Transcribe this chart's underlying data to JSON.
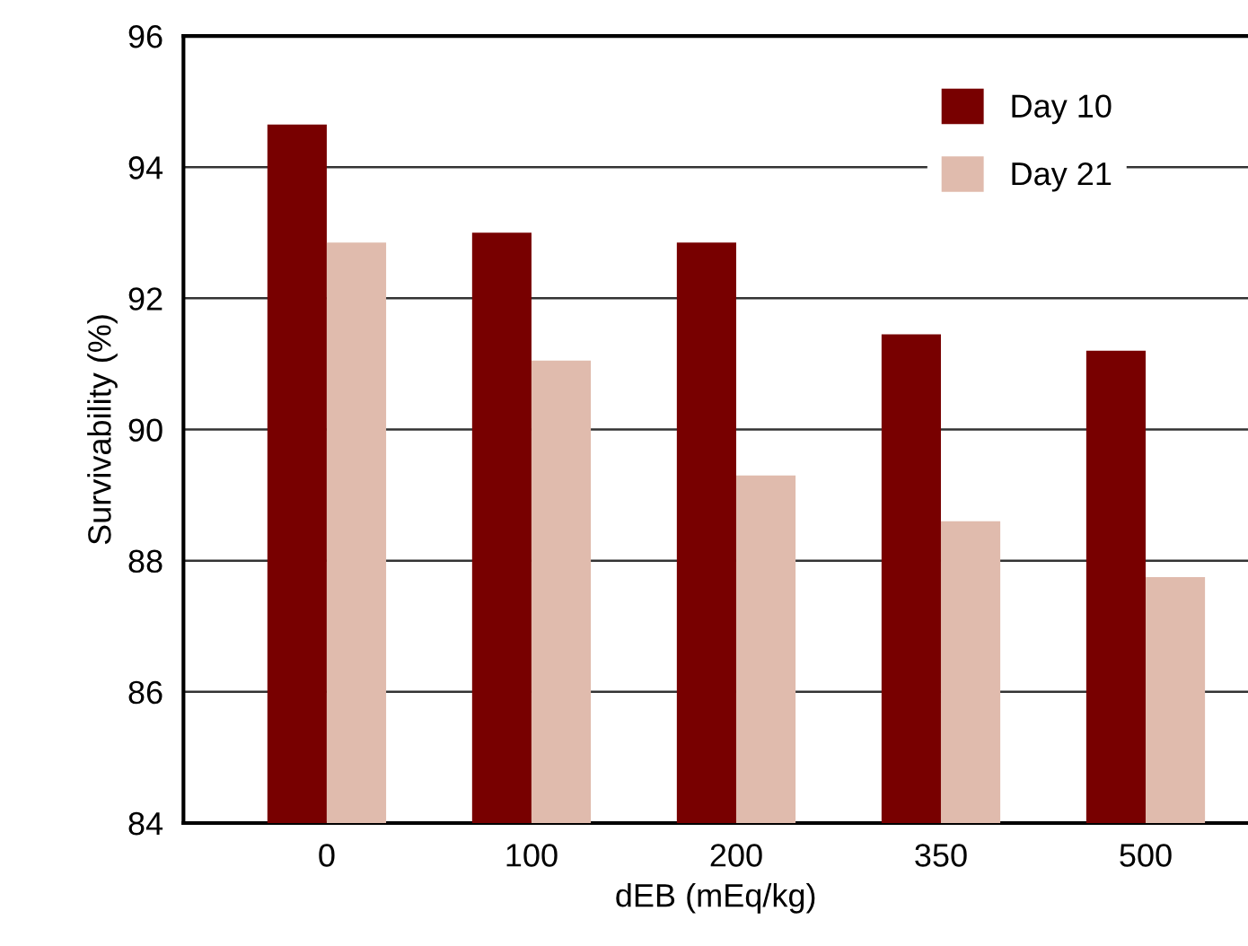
{
  "chart_data": {
    "type": "bar",
    "xlabel": "dEB (mEq/kg)",
    "ylabel": "Survivability (%)",
    "categories": [
      "0",
      "100",
      "200",
      "350",
      "500"
    ],
    "series": [
      {
        "name": "Day 10",
        "color": "#780000",
        "values": [
          94.65,
          93.0,
          92.85,
          91.45,
          91.2
        ]
      },
      {
        "name": "Day 21",
        "color": "#e0bbad",
        "values": [
          92.85,
          91.05,
          89.3,
          88.6,
          87.75
        ]
      }
    ],
    "ylim": [
      84,
      96
    ],
    "yticks": [
      84,
      86,
      88,
      90,
      92,
      94,
      96
    ],
    "grid": "y",
    "legend": "top right"
  }
}
